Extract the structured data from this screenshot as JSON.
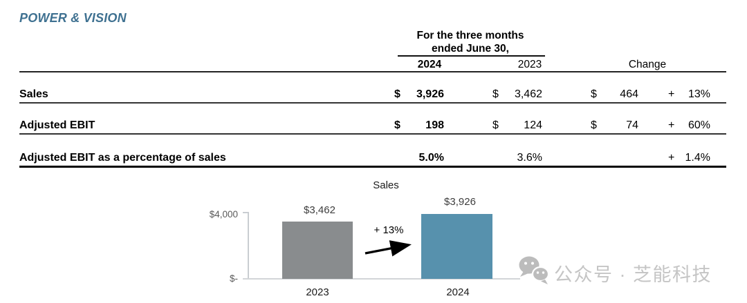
{
  "page": {
    "title": "POWER & VISION"
  },
  "table": {
    "header": {
      "period_line1": "For the three months",
      "period_line2": "ended June 30,",
      "col_2024": "2024",
      "col_2023": "2023",
      "col_change": "Change"
    },
    "rows": [
      {
        "label": "Sales",
        "y2024_dollar": "$",
        "y2024": "3,926",
        "y2023_dollar": "$",
        "y2023": "3,462",
        "chg_dollar": "$",
        "chg": "464",
        "sign": "+",
        "pct": "13%"
      },
      {
        "label": "Adjusted EBIT",
        "y2024_dollar": "$",
        "y2024": "198",
        "y2023_dollar": "$",
        "y2023": "124",
        "chg_dollar": "$",
        "chg": "74",
        "sign": "+",
        "pct": "60%"
      },
      {
        "label": "Adjusted EBIT as a percentage of sales",
        "y2024": "5.0%",
        "y2023": "3.6%",
        "sign": "+",
        "pct": "1.4%"
      }
    ]
  },
  "chart_data": {
    "type": "bar",
    "title": "Sales",
    "categories": [
      "2023",
      "2024"
    ],
    "values": [
      3462,
      3926
    ],
    "bar_labels": [
      "$3,462",
      "$3,926"
    ],
    "bar_colors": [
      "#898c8e",
      "#5791ad"
    ],
    "annotation": "+ 13%",
    "ylabel_top": "$4,000",
    "ylabel_bottom": "$-",
    "ylim": [
      0,
      4000
    ],
    "grid": false,
    "legend": false
  },
  "watermark": {
    "icon": "wechat-icon",
    "text": "公众号 · 芝能科技"
  },
  "colors": {
    "title_blue": "#3f7191",
    "bar_gray": "#898c8e",
    "bar_blue": "#5791ad",
    "axis_gray": "#c9cdd1",
    "watermark_gray": "#c5c5c5"
  }
}
